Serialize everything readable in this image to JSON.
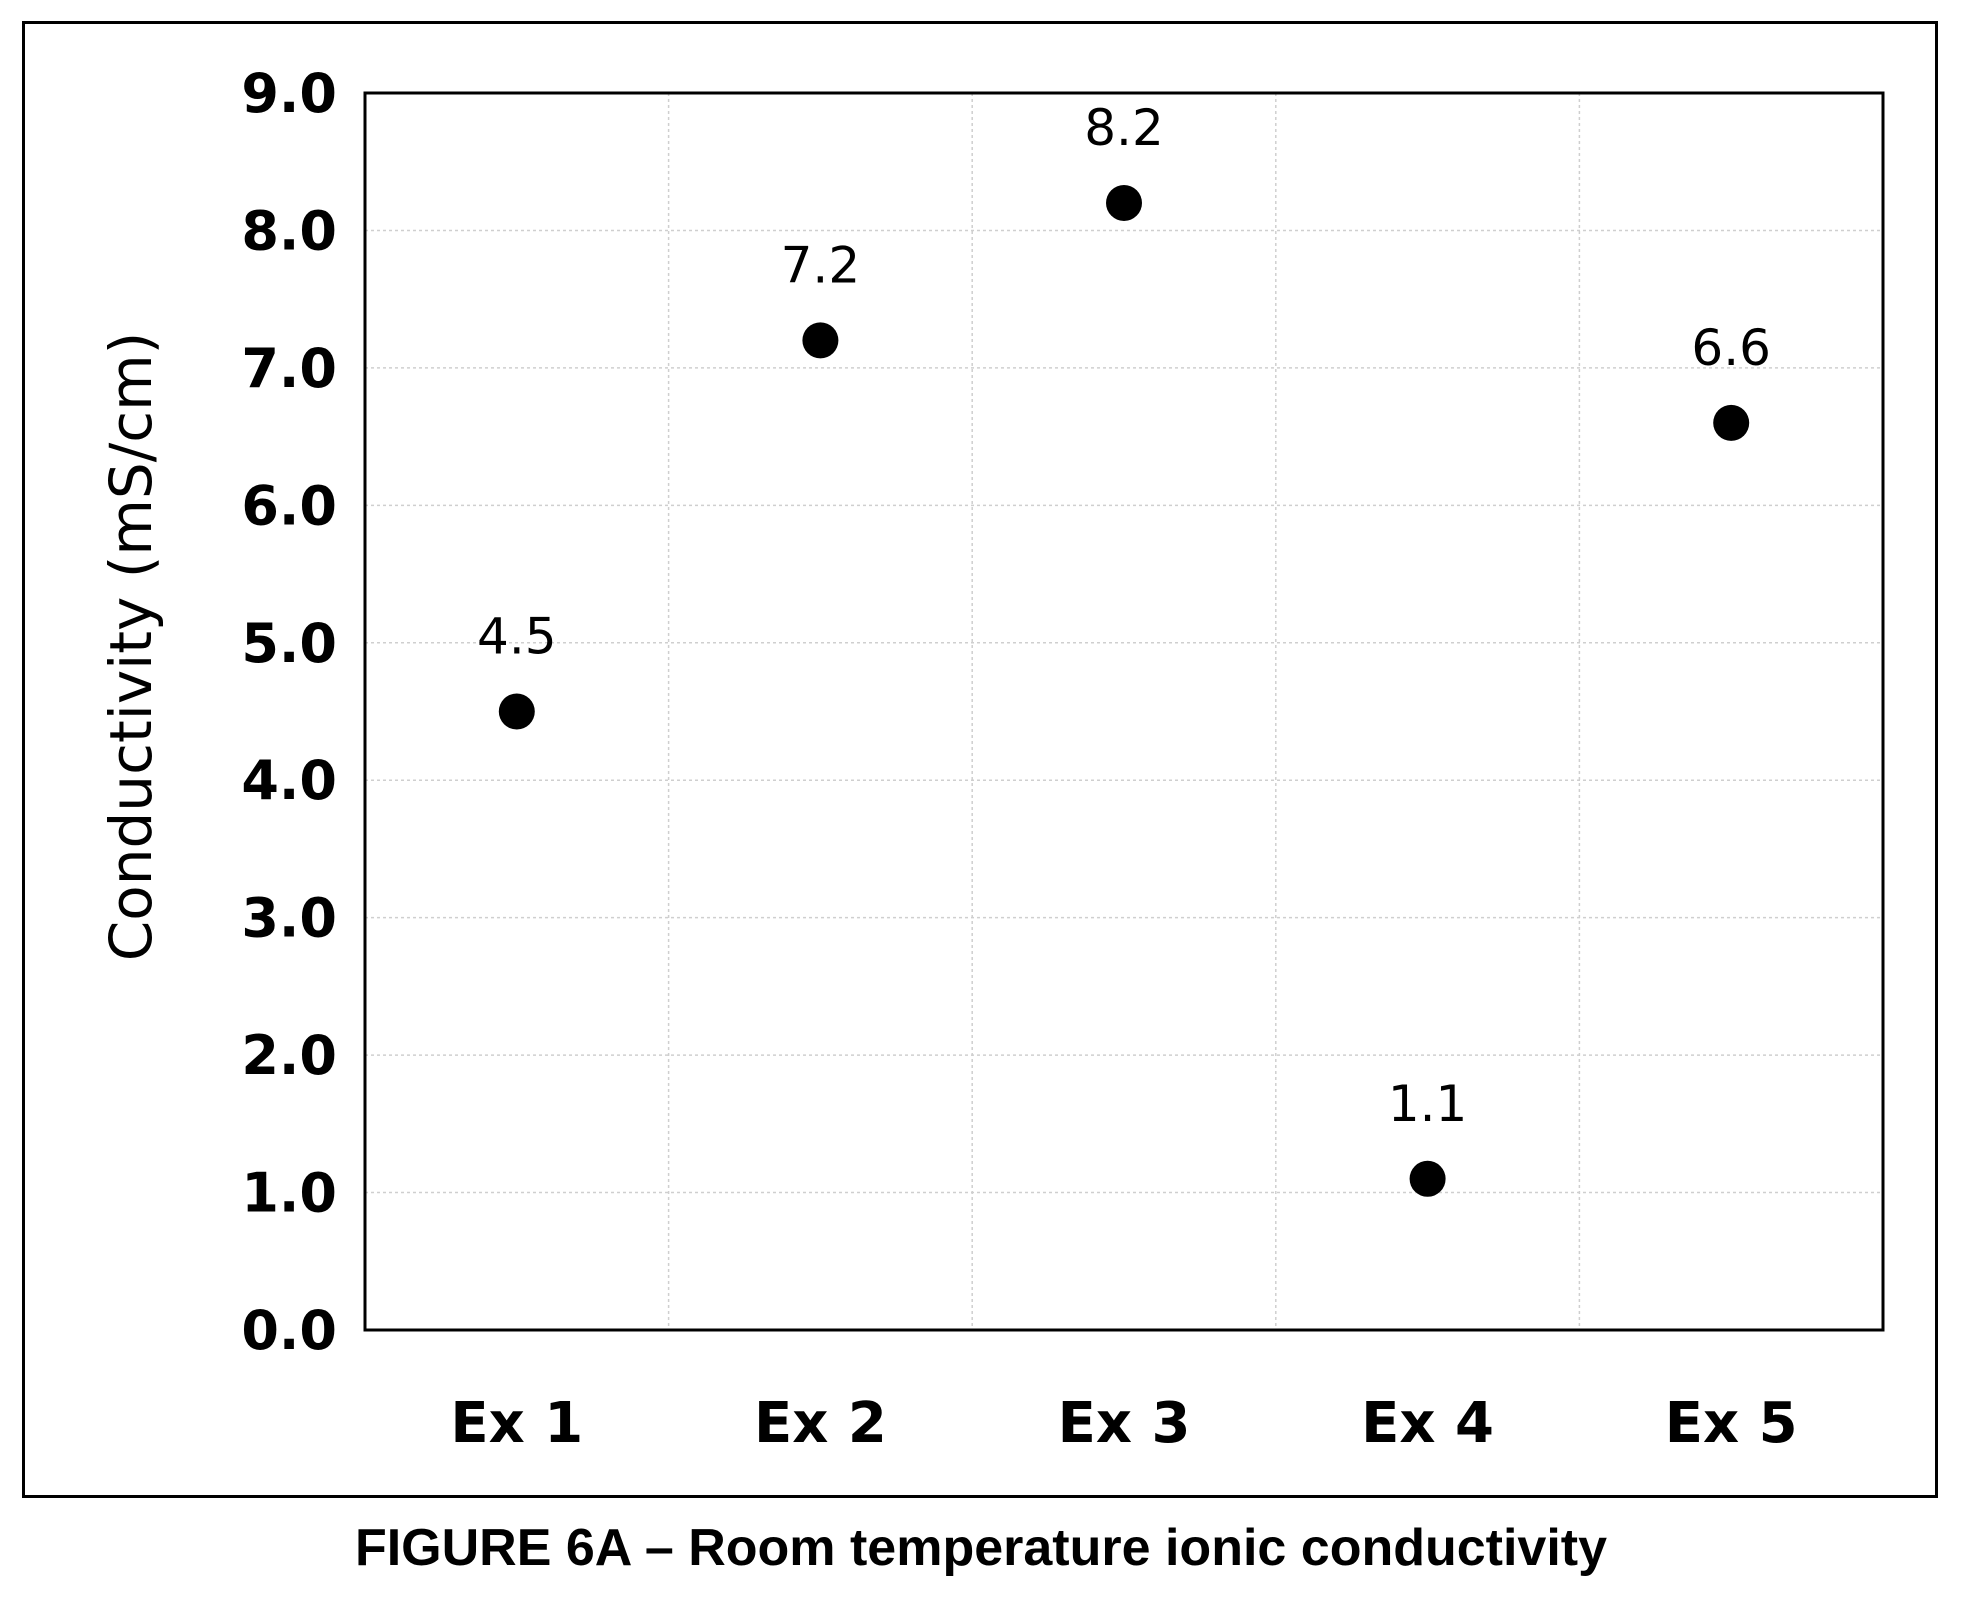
{
  "chart_data": {
    "type": "scatter",
    "categories": [
      "Ex 1",
      "Ex 2",
      "Ex 3",
      "Ex 4",
      "Ex 5"
    ],
    "values": [
      4.5,
      7.2,
      8.2,
      1.1,
      6.6
    ],
    "data_labels": [
      "4.5",
      "7.2",
      "8.2",
      "1.1",
      "6.6"
    ],
    "ylabel": "Conductivity (mS/cm)",
    "xlabel": "",
    "ylim": [
      0,
      9
    ],
    "yticks": [
      "0.0",
      "1.0",
      "2.0",
      "3.0",
      "4.0",
      "5.0",
      "6.0",
      "7.0",
      "8.0",
      "9.0"
    ],
    "grid": true,
    "marker_color": "#000000"
  },
  "caption": "FIGURE 6A – Room temperature ionic conductivity"
}
